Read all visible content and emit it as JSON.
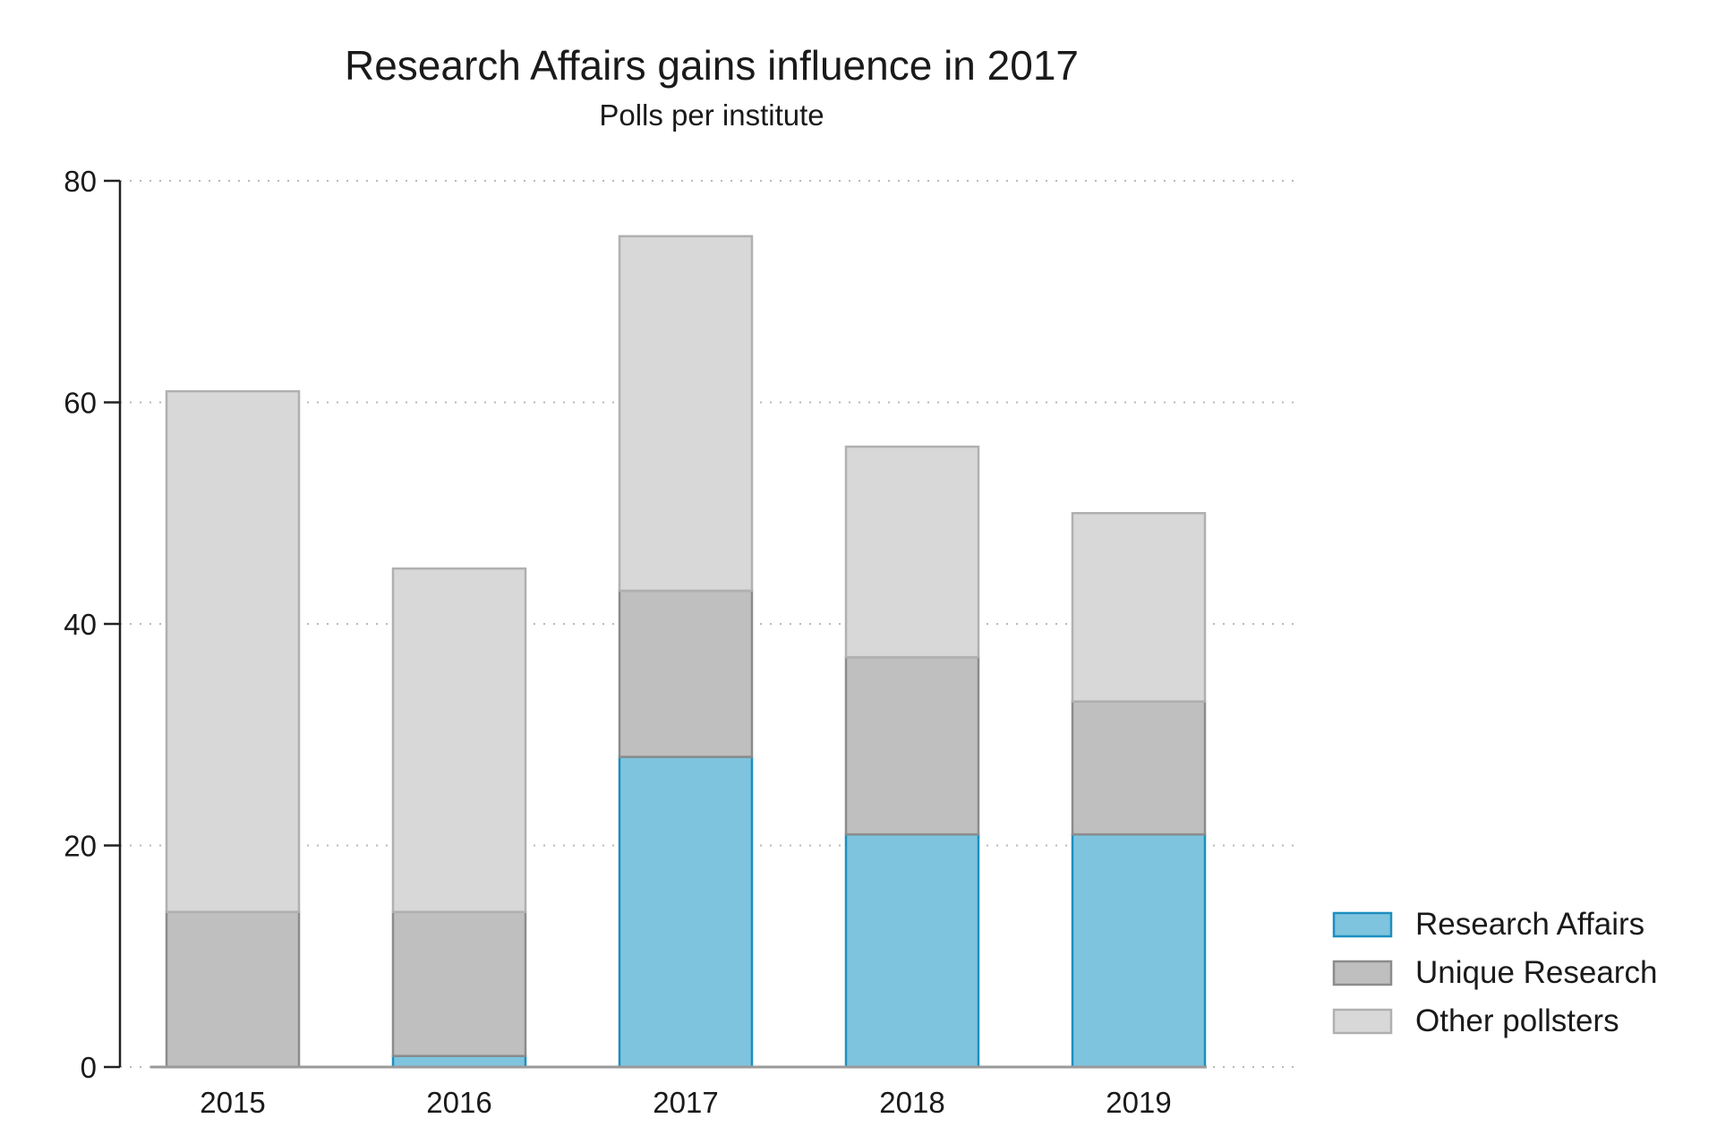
{
  "chart_data": {
    "type": "bar",
    "stacked": true,
    "title": "Research Affairs gains influence in 2017",
    "subtitle": "Polls per institute",
    "xlabel": "",
    "ylabel": "",
    "categories": [
      "2015",
      "2016",
      "2017",
      "2018",
      "2019"
    ],
    "series": [
      {
        "name": "Research Affairs",
        "values": [
          0,
          1,
          28,
          21,
          21
        ],
        "fill": "#7fc4de",
        "stroke": "#1d8fbf"
      },
      {
        "name": "Unique Research",
        "values": [
          14,
          13,
          15,
          16,
          12
        ],
        "fill": "#bfbfbf",
        "stroke": "#8c8c8c"
      },
      {
        "name": "Other pollsters",
        "values": [
          47,
          31,
          32,
          19,
          17
        ],
        "fill": "#d8d8d8",
        "stroke": "#b0b0b0"
      }
    ],
    "ylim": [
      0,
      80
    ],
    "yticks": [
      0,
      20,
      40,
      60,
      80
    ],
    "grid": true,
    "legend_position": "bottom-right"
  }
}
